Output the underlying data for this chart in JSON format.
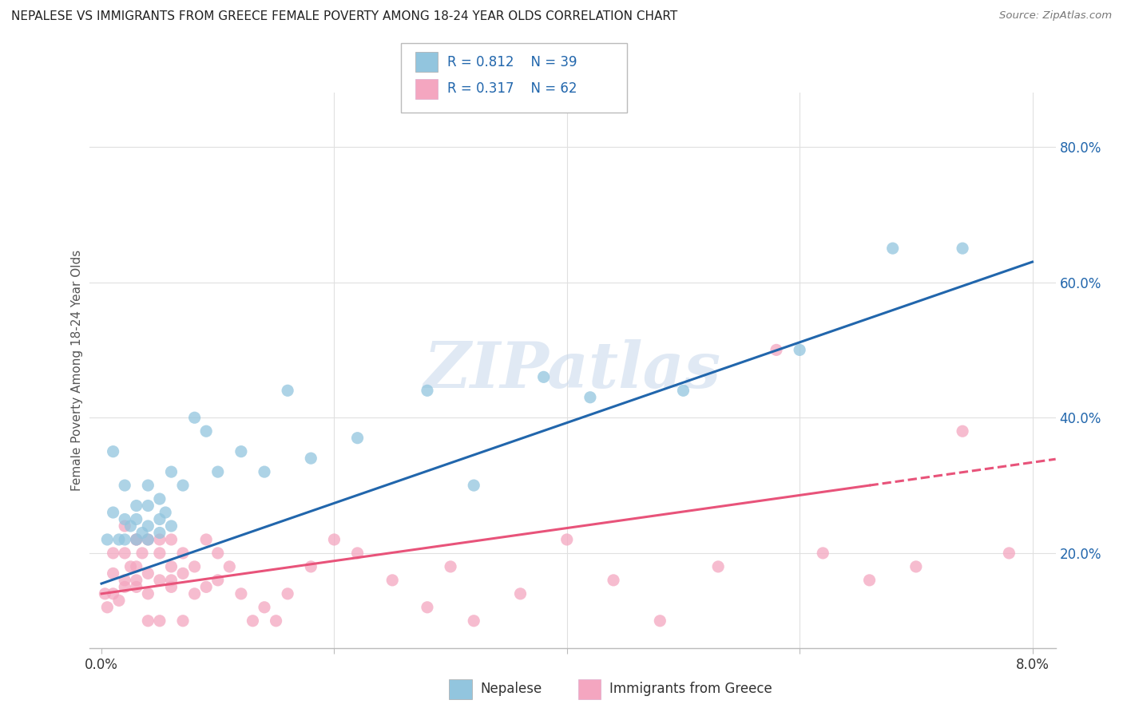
{
  "title": "NEPALESE VS IMMIGRANTS FROM GREECE FEMALE POVERTY AMONG 18-24 YEAR OLDS CORRELATION CHART",
  "source": "Source: ZipAtlas.com",
  "ylabel": "Female Poverty Among 18-24 Year Olds",
  "legend_bottom_blue": "Nepalese",
  "legend_bottom_pink": "Immigrants from Greece",
  "watermark": "ZIPatlas",
  "blue_color": "#92c5de",
  "pink_color": "#f4a6c0",
  "blue_line_color": "#2166ac",
  "pink_line_color": "#e8537a",
  "blue_R": "R = 0.812",
  "blue_N": "N = 39",
  "pink_R": "R = 0.317",
  "pink_N": "N = 62",
  "nepalese_x": [
    0.0005,
    0.001,
    0.001,
    0.0015,
    0.002,
    0.002,
    0.002,
    0.0025,
    0.003,
    0.003,
    0.003,
    0.0035,
    0.004,
    0.004,
    0.004,
    0.004,
    0.005,
    0.005,
    0.005,
    0.0055,
    0.006,
    0.006,
    0.007,
    0.008,
    0.009,
    0.01,
    0.012,
    0.014,
    0.016,
    0.018,
    0.022,
    0.028,
    0.032,
    0.038,
    0.042,
    0.05,
    0.06,
    0.068,
    0.074
  ],
  "nepalese_y": [
    0.22,
    0.35,
    0.26,
    0.22,
    0.3,
    0.25,
    0.22,
    0.24,
    0.22,
    0.27,
    0.25,
    0.23,
    0.3,
    0.27,
    0.24,
    0.22,
    0.28,
    0.25,
    0.23,
    0.26,
    0.32,
    0.24,
    0.3,
    0.4,
    0.38,
    0.32,
    0.35,
    0.32,
    0.44,
    0.34,
    0.37,
    0.44,
    0.3,
    0.46,
    0.43,
    0.44,
    0.5,
    0.65,
    0.65
  ],
  "greece_x": [
    0.0003,
    0.0005,
    0.001,
    0.001,
    0.001,
    0.0015,
    0.002,
    0.002,
    0.002,
    0.002,
    0.0025,
    0.003,
    0.003,
    0.003,
    0.003,
    0.003,
    0.0035,
    0.004,
    0.004,
    0.004,
    0.004,
    0.005,
    0.005,
    0.005,
    0.005,
    0.006,
    0.006,
    0.006,
    0.006,
    0.007,
    0.007,
    0.007,
    0.008,
    0.008,
    0.009,
    0.009,
    0.01,
    0.01,
    0.011,
    0.012,
    0.013,
    0.014,
    0.015,
    0.016,
    0.018,
    0.02,
    0.022,
    0.025,
    0.028,
    0.03,
    0.032,
    0.036,
    0.04,
    0.044,
    0.048,
    0.053,
    0.058,
    0.062,
    0.066,
    0.07,
    0.074,
    0.078
  ],
  "greece_y": [
    0.14,
    0.12,
    0.14,
    0.17,
    0.2,
    0.13,
    0.15,
    0.2,
    0.24,
    0.16,
    0.18,
    0.22,
    0.15,
    0.18,
    0.16,
    0.22,
    0.2,
    0.1,
    0.14,
    0.17,
    0.22,
    0.16,
    0.2,
    0.1,
    0.22,
    0.15,
    0.18,
    0.22,
    0.16,
    0.1,
    0.2,
    0.17,
    0.14,
    0.18,
    0.15,
    0.22,
    0.2,
    0.16,
    0.18,
    0.14,
    0.1,
    0.12,
    0.1,
    0.14,
    0.18,
    0.22,
    0.2,
    0.16,
    0.12,
    0.18,
    0.1,
    0.14,
    0.22,
    0.16,
    0.1,
    0.18,
    0.5,
    0.2,
    0.16,
    0.18,
    0.38,
    0.2
  ],
  "xlim": [
    -0.001,
    0.082
  ],
  "ylim": [
    0.06,
    0.88
  ],
  "yticks": [
    0.2,
    0.4,
    0.6,
    0.8
  ],
  "ytick_labels": [
    "20.0%",
    "40.0%",
    "60.0%",
    "80.0%"
  ],
  "bg_color": "#ffffff",
  "grid_color": "#e0e0e0"
}
